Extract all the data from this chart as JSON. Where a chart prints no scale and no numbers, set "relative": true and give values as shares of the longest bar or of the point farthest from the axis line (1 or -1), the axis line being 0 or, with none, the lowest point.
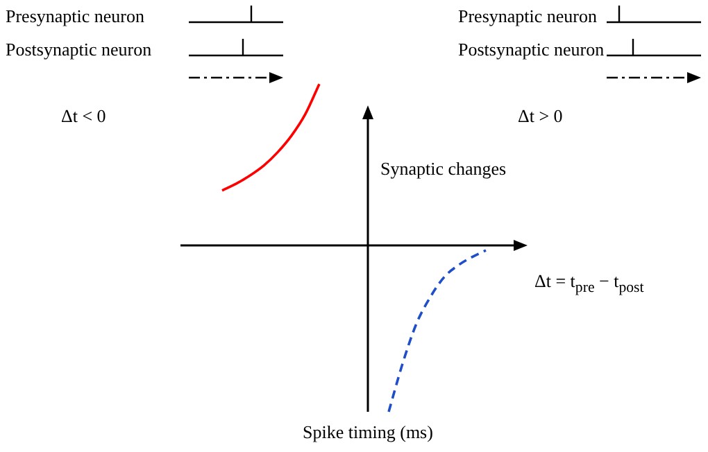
{
  "chart_data": {
    "type": "line",
    "relative": true,
    "ylabel": "Synaptic changes",
    "xlabel": "Spike timing (ms)",
    "categories": [
      null,
      null,
      null,
      null,
      null,
      null,
      null,
      null,
      null,
      null,
      null,
      null,
      null,
      null,
      null,
      null,
      null,
      null,
      null,
      null,
      null,
      null,
      null,
      null,
      null,
      null
    ],
    "series": [
      {
        "color": "#ff0000",
        "line_style": "solid",
        "values": [
          null,
          null,
          null,
          0.33,
          0.37,
          0.42,
          0.48,
          0.56,
          0.66,
          0.79,
          0.97,
          null,
          null,
          null,
          null,
          null,
          null,
          null,
          null,
          null,
          null,
          null,
          null,
          null,
          null,
          null
        ]
      },
      {
        "color": "#1f4fc8",
        "line_style": "dashed",
        "values": [
          null,
          null,
          null,
          null,
          null,
          null,
          null,
          null,
          null,
          null,
          null,
          null,
          null,
          null,
          null,
          -1,
          -0.71,
          -0.47,
          -0.31,
          -0.19,
          -0.12,
          -0.07,
          -0.03,
          null,
          null,
          null
        ]
      }
    ],
    "annotations": [
      "Presynaptic neuron",
      "Postsynaptic neuron",
      "Δt < 0",
      "Presynaptic neuron",
      "Postsynaptic neuron",
      "Δt > 0",
      "Δt = t$_{pre}$ − t$_{post}$"
    ],
    "legend": false,
    "marker": "none"
  }
}
